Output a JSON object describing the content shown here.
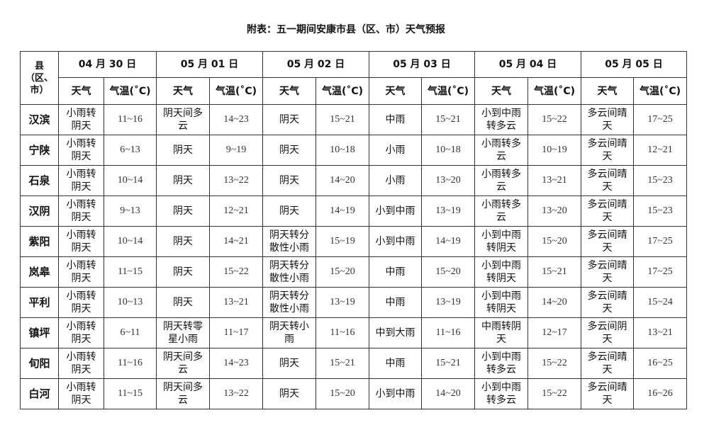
{
  "title": "附表：五一期间安康市县（区、市）天气预报",
  "corner_label": "县（区、市）",
  "sub_headers": {
    "weather": "天气",
    "temp": "气温(˚C)"
  },
  "dates": [
    "04 月 30 日",
    "05 月 01 日",
    "05 月 02 日",
    "05 月 03 日",
    "05 月 04 日",
    "05 月 05 日"
  ],
  "rows": [
    {
      "county": "汉滨",
      "days": [
        [
          "小雨转阴天",
          "11~16"
        ],
        [
          "阴天间多云",
          "14~23"
        ],
        [
          "阴天",
          "15~21"
        ],
        [
          "中雨",
          "15~21"
        ],
        [
          "小到中雨转多云",
          "15~22"
        ],
        [
          "多云间晴天",
          "17~25"
        ]
      ]
    },
    {
      "county": "宁陕",
      "days": [
        [
          "小雨转阴天",
          "6~13"
        ],
        [
          "阴天",
          "9~19"
        ],
        [
          "阴天",
          "10~18"
        ],
        [
          "小雨",
          "10~18"
        ],
        [
          "小雨转多云",
          "10~19"
        ],
        [
          "多云间晴天",
          "12~21"
        ]
      ]
    },
    {
      "county": "石泉",
      "days": [
        [
          "小雨转阴天",
          "10~14"
        ],
        [
          "阴天",
          "13~22"
        ],
        [
          "阴天",
          "14~20"
        ],
        [
          "小雨",
          "13~20"
        ],
        [
          "小雨转多云",
          "13~21"
        ],
        [
          "多云间晴天",
          "15~23"
        ]
      ]
    },
    {
      "county": "汉阴",
      "days": [
        [
          "小雨转阴天",
          "9~13"
        ],
        [
          "阴天",
          "12~21"
        ],
        [
          "阴天",
          "14~19"
        ],
        [
          "小到中雨",
          "13~19"
        ],
        [
          "小雨转多云",
          "13~20"
        ],
        [
          "多云间晴天",
          "15~23"
        ]
      ]
    },
    {
      "county": "紫阳",
      "days": [
        [
          "小雨转阴天",
          "10~14"
        ],
        [
          "阴天",
          "14~21"
        ],
        [
          "阴天转分散性小雨",
          "15~19"
        ],
        [
          "小到中雨",
          "14~19"
        ],
        [
          "小到中雨转阴天",
          "15~20"
        ],
        [
          "多云间晴天",
          "17~25"
        ]
      ]
    },
    {
      "county": "岚皋",
      "days": [
        [
          "小雨转阴天",
          "11~15"
        ],
        [
          "阴天",
          "15~22"
        ],
        [
          "阴天转分散性小雨",
          "15~20"
        ],
        [
          "中雨",
          "15~20"
        ],
        [
          "小到中雨转阴天",
          "15~21"
        ],
        [
          "多云间晴天",
          "17~25"
        ]
      ]
    },
    {
      "county": "平利",
      "days": [
        [
          "小雨转阴天",
          "10~13"
        ],
        [
          "阴天",
          "13~21"
        ],
        [
          "阴天转分散性小雨",
          "13~19"
        ],
        [
          "中雨",
          "13~19"
        ],
        [
          "小到中雨转阴天",
          "14~20"
        ],
        [
          "多云间晴天",
          "15~24"
        ]
      ]
    },
    {
      "county": "镇坪",
      "days": [
        [
          "小雨转阴天",
          "6~11"
        ],
        [
          "阴天转零星小雨",
          "11~17"
        ],
        [
          "阴天转小雨",
          "11~16"
        ],
        [
          "中到大雨",
          "11~16"
        ],
        [
          "中雨转阴天",
          "12~17"
        ],
        [
          "多云间阴天",
          "13~21"
        ]
      ]
    },
    {
      "county": "旬阳",
      "days": [
        [
          "小雨转阴天",
          "11~16"
        ],
        [
          "阴天间多云",
          "14~23"
        ],
        [
          "阴天",
          "15~21"
        ],
        [
          "中雨",
          "15~21"
        ],
        [
          "小到中雨转多云",
          "15~22"
        ],
        [
          "多云间晴天",
          "16~25"
        ]
      ]
    },
    {
      "county": "白河",
      "days": [
        [
          "小雨转阴天",
          "11~15"
        ],
        [
          "阴天间多云",
          "13~22"
        ],
        [
          "阴天",
          "15~20"
        ],
        [
          "小到中雨",
          "14~20"
        ],
        [
          "小到中雨转多云",
          "15~22"
        ],
        [
          "多云间晴天",
          "16~26"
        ]
      ]
    }
  ]
}
